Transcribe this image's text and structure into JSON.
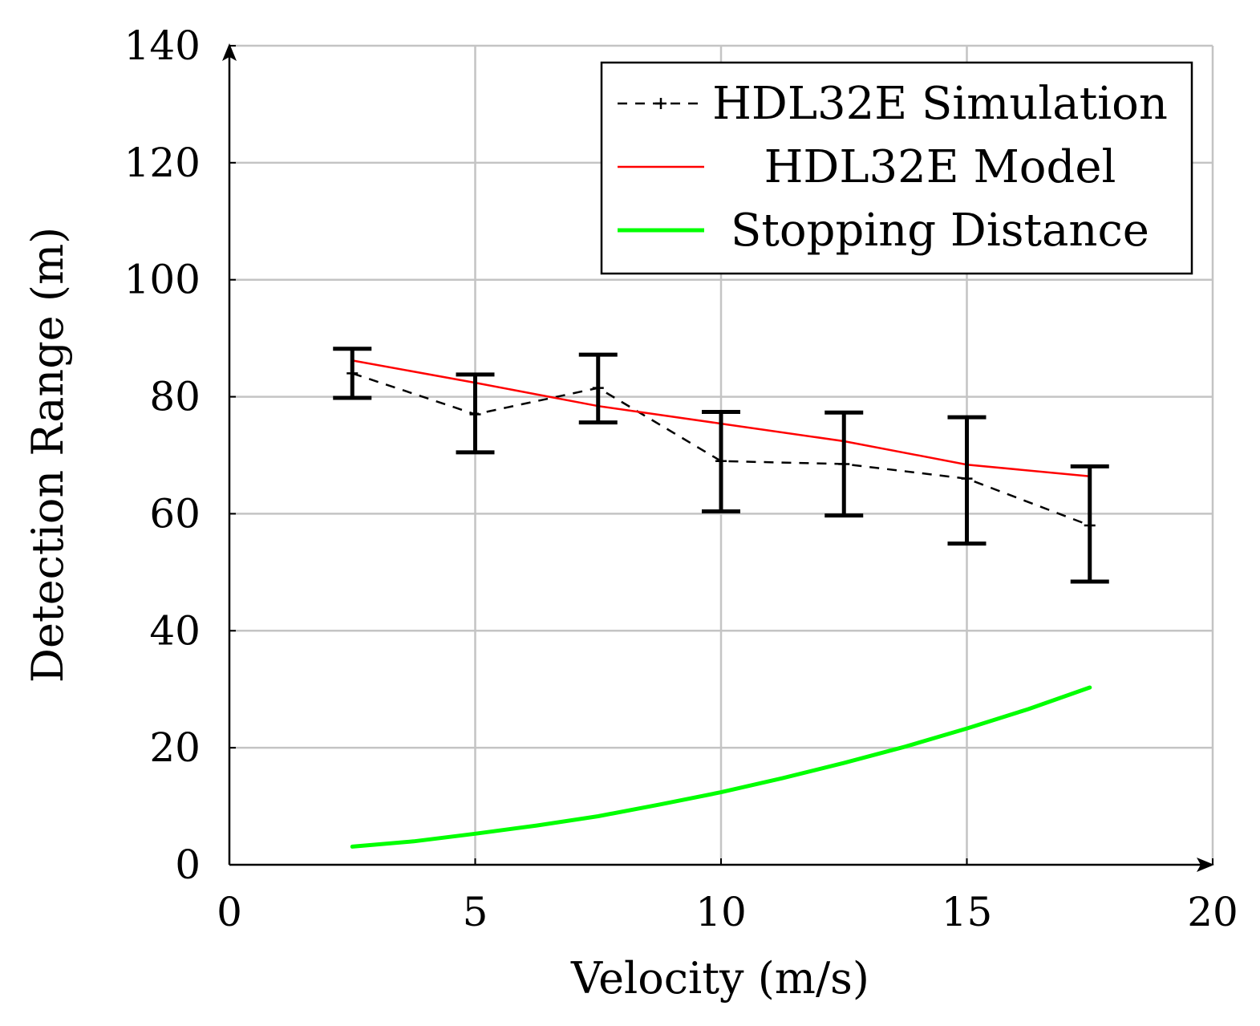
{
  "chart_data": {
    "type": "line",
    "title": "",
    "xlabel": "Velocity (m/s)",
    "ylabel": "Detection Range (m)",
    "xlim": [
      0,
      20
    ],
    "ylim": [
      0,
      140
    ],
    "xticks": [
      0,
      5,
      10,
      15,
      20
    ],
    "yticks": [
      0,
      20,
      40,
      60,
      80,
      100,
      120,
      140
    ],
    "xtick_labels": [
      "0",
      "5",
      "10",
      "15",
      "20"
    ],
    "ytick_labels": [
      "0",
      "20",
      "40",
      "60",
      "80",
      "100",
      "120",
      "140"
    ],
    "grid": true,
    "legend_position": "top-right",
    "series": [
      {
        "name": "HDL32E Simulation",
        "style": "dashed",
        "marker": "plus",
        "color": "#000000",
        "x": [
          2.5,
          5,
          7.5,
          10,
          12.5,
          15,
          17.5
        ],
        "y": [
          84,
          77,
          81.5,
          69,
          68.5,
          66,
          58
        ],
        "error_low": [
          79.8,
          70.5,
          75.6,
          60.4,
          59.7,
          54.9,
          48.4
        ],
        "error_high": [
          88.2,
          83.8,
          87.2,
          77.4,
          77.3,
          76.5,
          68.1
        ]
      },
      {
        "name": "HDL32E Model",
        "style": "solid",
        "color": "#ff0000",
        "x": [
          2.5,
          5,
          7.5,
          10,
          12.5,
          15,
          17.5
        ],
        "y": [
          86.2,
          82.4,
          78.4,
          75.4,
          72.4,
          68.4,
          66.4
        ]
      },
      {
        "name": "Stopping Distance",
        "style": "solid",
        "color": "#00ff00",
        "x": [
          2.5,
          3.75,
          5,
          6.25,
          7.5,
          8.75,
          10,
          11.25,
          12.5,
          13.75,
          15,
          16.25,
          17.5
        ],
        "y": [
          3.1,
          4.0,
          5.3,
          6.7,
          8.3,
          10.3,
          12.4,
          14.8,
          17.4,
          20.2,
          23.3,
          26.6,
          30.3
        ]
      }
    ]
  }
}
